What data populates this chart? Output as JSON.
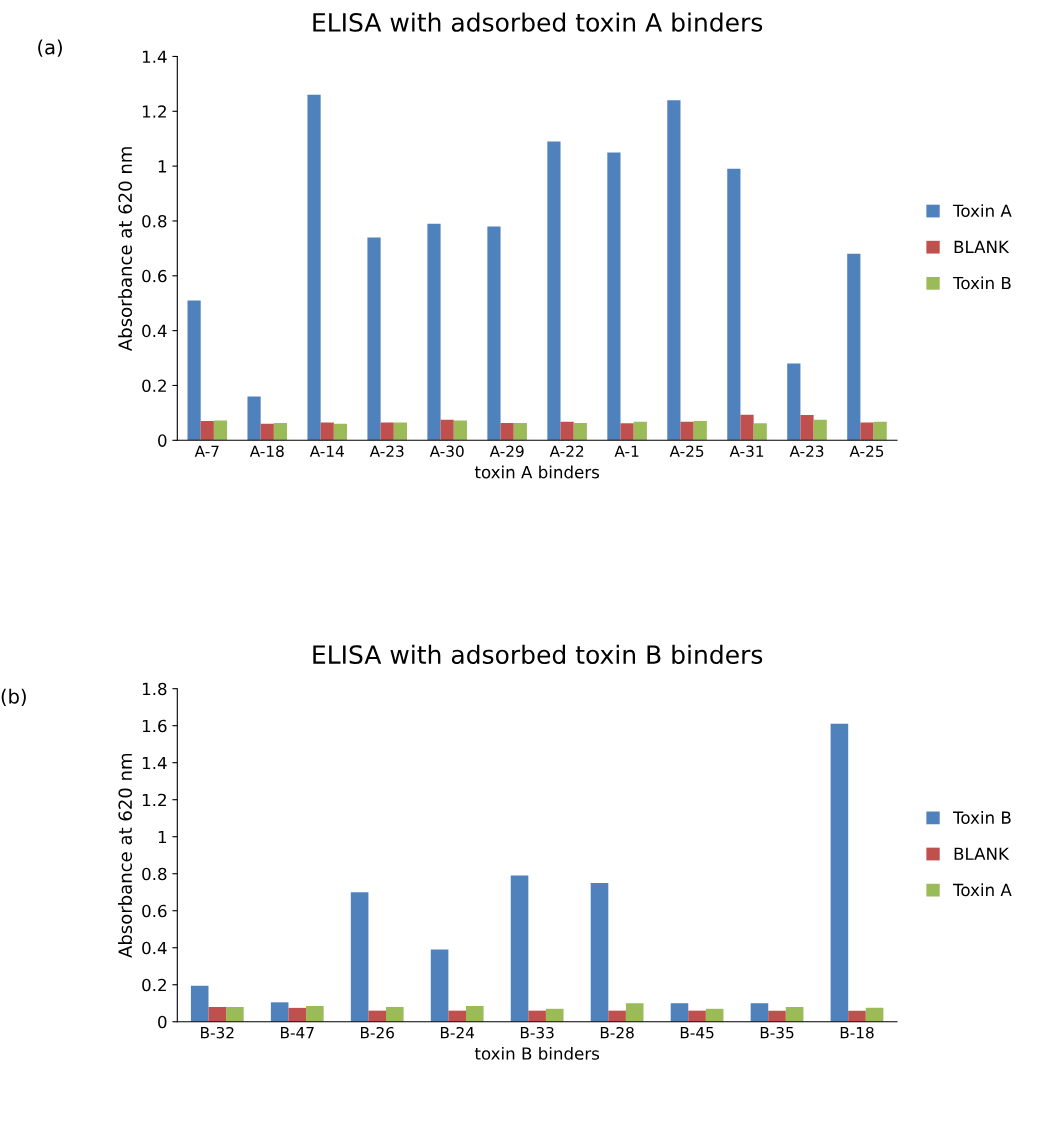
{
  "chart_data": [
    {
      "type": "bar",
      "title": "ELISA with adsorbed toxin A binders",
      "xlabel": "toxin A binders",
      "ylabel": "Absorbance at 620 nm",
      "annotations": [
        "(a)"
      ],
      "categories": [
        "A-7",
        "A-18",
        "A-14",
        "A-23",
        "A-30",
        "A-29",
        "A-22",
        "A-1",
        "A-25",
        "A-31",
        "A-23",
        "A-25"
      ],
      "series": [
        {
          "name": "Toxin A",
          "color": "#4f81bd",
          "values": [
            0.51,
            0.16,
            1.26,
            0.74,
            0.79,
            0.78,
            1.09,
            1.05,
            1.24,
            0.99,
            0.28,
            0.68
          ]
        },
        {
          "name": "BLANK",
          "color": "#c0504d",
          "values": [
            0.07,
            0.06,
            0.065,
            0.065,
            0.075,
            0.063,
            0.068,
            0.062,
            0.068,
            0.093,
            0.092,
            0.065
          ]
        },
        {
          "name": "Toxin B",
          "color": "#9bbb59",
          "values": [
            0.072,
            0.063,
            0.06,
            0.065,
            0.072,
            0.063,
            0.063,
            0.068,
            0.07,
            0.062,
            0.075,
            0.068
          ]
        }
      ],
      "ylim": [
        0,
        1.4
      ],
      "yticks": [
        0,
        0.2,
        0.4,
        0.6,
        0.8,
        1,
        1.2,
        1.4
      ],
      "grid": false,
      "legend": "right"
    },
    {
      "type": "bar",
      "title": "ELISA with adsorbed toxin B binders",
      "xlabel": "toxin B binders",
      "ylabel": "Absorbance at 620 nm",
      "annotations": [
        "(b)"
      ],
      "categories": [
        "B-32",
        "B-47",
        "B-26",
        "B-24",
        "B-33",
        "B-28",
        "B-45",
        "B-35",
        "B-18"
      ],
      "series": [
        {
          "name": "Toxin B",
          "color": "#4f81bd",
          "values": [
            0.195,
            0.105,
            0.7,
            0.39,
            0.79,
            0.75,
            0.1,
            0.1,
            1.61
          ]
        },
        {
          "name": "BLANK",
          "color": "#c0504d",
          "values": [
            0.08,
            0.075,
            0.06,
            0.06,
            0.06,
            0.06,
            0.06,
            0.06,
            0.06
          ]
        },
        {
          "name": "Toxin A",
          "color": "#9bbb59",
          "values": [
            0.08,
            0.085,
            0.08,
            0.085,
            0.07,
            0.1,
            0.07,
            0.08,
            0.075
          ]
        }
      ],
      "ylim": [
        0,
        1.8
      ],
      "yticks": [
        0,
        0.2,
        0.4,
        0.6,
        0.8,
        1,
        1.2,
        1.4,
        1.6,
        1.8
      ],
      "grid": false,
      "legend": "right"
    }
  ]
}
